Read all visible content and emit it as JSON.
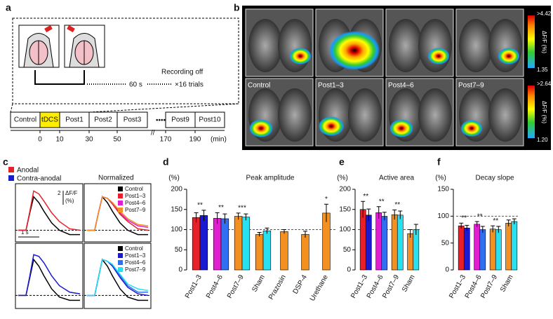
{
  "panel_labels": [
    "a",
    "b",
    "c",
    "d",
    "e",
    "f"
  ],
  "panel_a": {
    "recording_off": "Recording off",
    "interval": "60 s",
    "trials": "×16 trials",
    "timeline": [
      "Control",
      "tDCS",
      "Post1",
      "Post2",
      "Post3",
      "Post9",
      "Post10"
    ],
    "time_labels": [
      "0",
      "10",
      "30",
      "50",
      "170",
      "190"
    ],
    "unit": "(min)"
  },
  "panel_b": {
    "row_labels": [
      "Control",
      "Post1–3",
      "Post4–6",
      "Post7–9"
    ],
    "colorbars": [
      {
        "max": ">4.42",
        "min": "1.35"
      },
      {
        "max": ">2.64",
        "min": "1.20"
      }
    ],
    "unit": "ΔF/F (%)"
  },
  "panel_c": {
    "legend": [
      {
        "name": "Anodal",
        "color": "#e8202a"
      },
      {
        "name": "Contra-anodal",
        "color": "#1a1ad0"
      }
    ],
    "normalized": "Normalized",
    "scale_y": "2",
    "scale_unit": "ΔF/F",
    "scale_unit2": "(%)",
    "scale_x": "1 s"
  },
  "chart_data": [
    {
      "type": "line",
      "x": [
        0,
        0.3,
        0.45,
        0.6,
        0.8,
        1.0,
        1.3,
        1.6,
        2.0,
        2.4
      ],
      "xlim": [
        0,
        2.4
      ],
      "ylim": [
        -0.8,
        3.2
      ],
      "reference_line": 0,
      "series": [
        {
          "color": "#000000",
          "values": [
            0,
            0,
            1.2,
            2.3,
            1.9,
            1.3,
            0.5,
            0.0,
            -0.3,
            -0.3
          ]
        },
        {
          "color": "#e8202a",
          "values": [
            0,
            0,
            1.3,
            2.7,
            2.5,
            2.0,
            1.2,
            0.6,
            0.1,
            0.0
          ]
        }
      ]
    },
    {
      "type": "line",
      "x": [
        0,
        0.3,
        0.45,
        0.6,
        0.8,
        1.0,
        1.3,
        1.6,
        2.0,
        2.4
      ],
      "xlim": [
        0,
        2.4
      ],
      "ylim": [
        -0.8,
        3.2
      ],
      "reference_line": 0,
      "series": [
        {
          "name": "Control",
          "color": "#000000",
          "values": [
            0,
            0,
            1.2,
            2.3,
            1.9,
            1.3,
            0.5,
            0.0,
            -0.3,
            -0.3
          ]
        },
        {
          "name": "Post1–3",
          "color": "#e8202a",
          "values": [
            0,
            0,
            1.2,
            2.3,
            2.2,
            1.8,
            1.1,
            0.6,
            0.1,
            0.0
          ]
        },
        {
          "name": "Post4–6",
          "color": "#e020d0",
          "values": [
            0,
            0,
            1.2,
            2.3,
            2.2,
            1.9,
            1.2,
            0.7,
            0.3,
            0.2
          ]
        },
        {
          "name": "Post7–9",
          "color": "#f39020",
          "values": [
            0,
            0,
            1.2,
            2.3,
            2.2,
            1.9,
            1.3,
            0.8,
            0.4,
            0.3
          ]
        }
      ]
    },
    {
      "type": "line",
      "x": [
        0,
        0.3,
        0.45,
        0.6,
        0.8,
        1.0,
        1.3,
        1.6,
        2.0,
        2.4
      ],
      "xlim": [
        0,
        2.4
      ],
      "ylim": [
        -0.8,
        3.2
      ],
      "reference_line": 0,
      "series": [
        {
          "color": "#000000",
          "values": [
            0,
            0,
            1.1,
            2.2,
            1.8,
            1.2,
            0.4,
            -0.1,
            -0.3,
            -0.3
          ]
        },
        {
          "color": "#1a1ad0",
          "values": [
            0,
            0,
            1.2,
            2.5,
            2.4,
            2.0,
            1.2,
            0.6,
            0.2,
            0.1
          ]
        }
      ]
    },
    {
      "type": "line",
      "x": [
        0,
        0.3,
        0.45,
        0.6,
        0.8,
        1.0,
        1.3,
        1.6,
        2.0,
        2.4
      ],
      "xlim": [
        0,
        2.4
      ],
      "ylim": [
        -0.8,
        3.2
      ],
      "reference_line": 0,
      "series": [
        {
          "name": "Control",
          "color": "#000000",
          "values": [
            0,
            0,
            1.1,
            2.2,
            1.8,
            1.2,
            0.4,
            -0.1,
            -0.3,
            -0.3
          ]
        },
        {
          "name": "Post1–3",
          "color": "#1a1ad0",
          "values": [
            0,
            0,
            1.1,
            2.2,
            2.1,
            1.8,
            1.1,
            0.5,
            0.1,
            0.0
          ]
        },
        {
          "name": "Post4–6",
          "color": "#2f6ff0",
          "values": [
            0,
            0,
            1.1,
            2.2,
            2.1,
            1.9,
            1.2,
            0.6,
            0.2,
            0.2
          ]
        },
        {
          "name": "Post7–9",
          "color": "#27e0f0",
          "values": [
            0,
            0,
            1.1,
            2.2,
            2.1,
            1.9,
            1.3,
            0.7,
            0.4,
            0.3
          ]
        }
      ]
    },
    {
      "type": "bar",
      "title": "Peak amplitude",
      "ylabel": "(%)",
      "ylim": [
        0,
        200
      ],
      "yticks": [
        0,
        50,
        100,
        150,
        200
      ],
      "reference_line": 100,
      "categories": [
        "Post1–3",
        "Post4–6",
        "Post7–9",
        "Sham",
        "Prazosin",
        "DSP-4",
        "Urethane"
      ],
      "annotations": [
        "**",
        "**",
        "***",
        null,
        null,
        null,
        "*"
      ],
      "series": [
        {
          "colors": [
            "#e8202a",
            "#e020d0",
            "#f39020",
            "#f39020",
            "#f39020",
            "#f39020",
            "#f39020"
          ],
          "values": [
            130,
            128,
            133,
            88,
            95,
            88,
            141
          ],
          "errors": [
            12,
            14,
            8,
            5,
            5,
            8,
            22
          ]
        },
        {
          "colors": [
            "#1a1ad0",
            "#2f6ff0",
            "#27e0f0",
            "#27e0f0",
            null,
            null,
            null
          ],
          "values": [
            135,
            127,
            131,
            97,
            null,
            null,
            null
          ],
          "errors": [
            13,
            12,
            8,
            7,
            null,
            null,
            null
          ]
        }
      ]
    },
    {
      "type": "bar",
      "title": "Active area",
      "ylabel": "(%)",
      "ylim": [
        0,
        200
      ],
      "yticks": [
        0,
        50,
        100,
        150,
        200
      ],
      "reference_line": 100,
      "categories": [
        "Post1–3",
        "Post4–6",
        "Post7–9",
        "Sham"
      ],
      "annotations": [
        "**",
        "**",
        "**",
        null
      ],
      "series": [
        {
          "colors": [
            "#e8202a",
            "#e020d0",
            "#f39020",
            "#f39020"
          ],
          "values": [
            150,
            142,
            137,
            90
          ],
          "errors": [
            20,
            15,
            12,
            10
          ]
        },
        {
          "colors": [
            "#1a1ad0",
            "#2f6ff0",
            "#27e0f0",
            "#27e0f0"
          ],
          "values": [
            136,
            133,
            136,
            100
          ],
          "errors": [
            15,
            10,
            10,
            13
          ]
        }
      ]
    },
    {
      "type": "bar",
      "title": "Decay slope",
      "ylabel": "(%)",
      "ylim": [
        0,
        150
      ],
      "yticks": [
        0,
        50,
        100,
        150
      ],
      "reference_line": 100,
      "categories": [
        "Post1–3",
        "Post4–6",
        "Post7–9",
        "Sham"
      ],
      "annotations": [
        "**",
        "**",
        "**",
        null
      ],
      "series": [
        {
          "colors": [
            "#e8202a",
            "#e020d0",
            "#f39020",
            "#f39020"
          ],
          "values": [
            82,
            85,
            76,
            87
          ],
          "errors": [
            5,
            5,
            6,
            6
          ]
        },
        {
          "colors": [
            "#1a1ad0",
            "#2f6ff0",
            "#27e0f0",
            "#27e0f0"
          ],
          "values": [
            78,
            75,
            75,
            90
          ],
          "errors": [
            5,
            6,
            6,
            5
          ]
        }
      ]
    }
  ]
}
